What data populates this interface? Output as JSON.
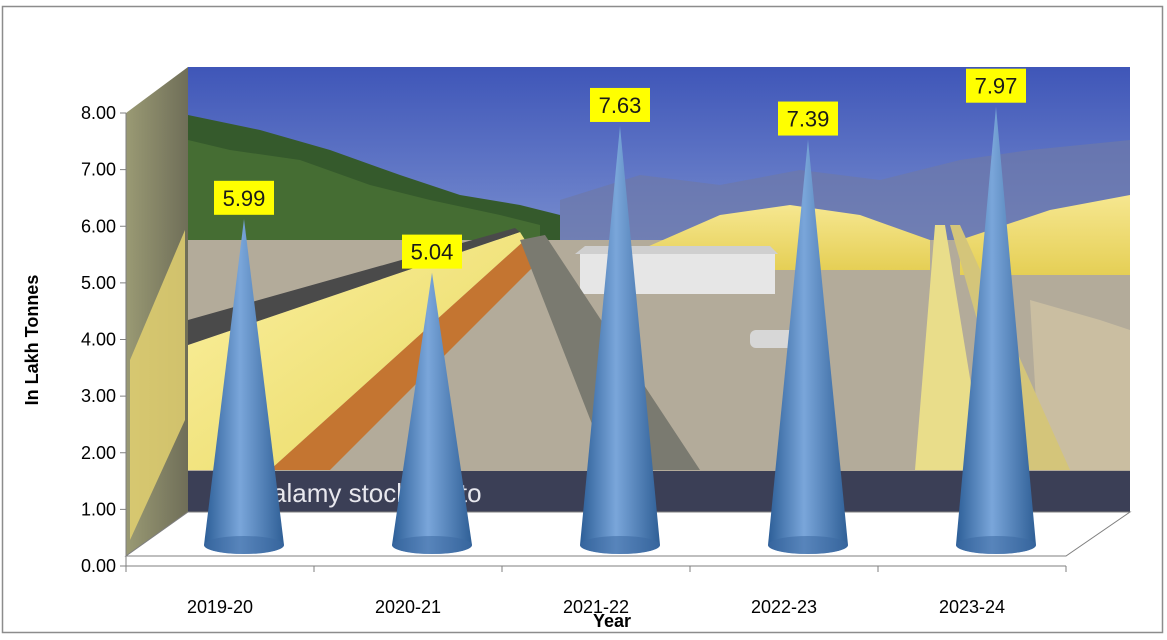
{
  "chart_data": {
    "type": "bar",
    "bar_shape": "cone",
    "categories": [
      "2019-20",
      "2020-21",
      "2021-22",
      "2022-23",
      "2023-24"
    ],
    "values": [
      5.99,
      5.04,
      7.63,
      7.39,
      7.97
    ],
    "data_labels": [
      "5.99",
      "5.04",
      "7.63",
      "7.39",
      "7.97"
    ],
    "ylim": [
      0,
      8
    ],
    "yticks": [
      "0.00",
      "1.00",
      "2.00",
      "3.00",
      "4.00",
      "5.00",
      "6.00",
      "7.00",
      "8.00"
    ],
    "xlabel": "Year",
    "ylabel": "In  Lakh Tonnes",
    "grid": false,
    "legend": "none",
    "background": "photo of conveyor belts and yellow sulphur stockpiles",
    "watermark": "alamy stock photo",
    "colors": {
      "bar": "#4f81bd",
      "label_box": "#ffff00",
      "frame": "#7f7f7f"
    }
  }
}
